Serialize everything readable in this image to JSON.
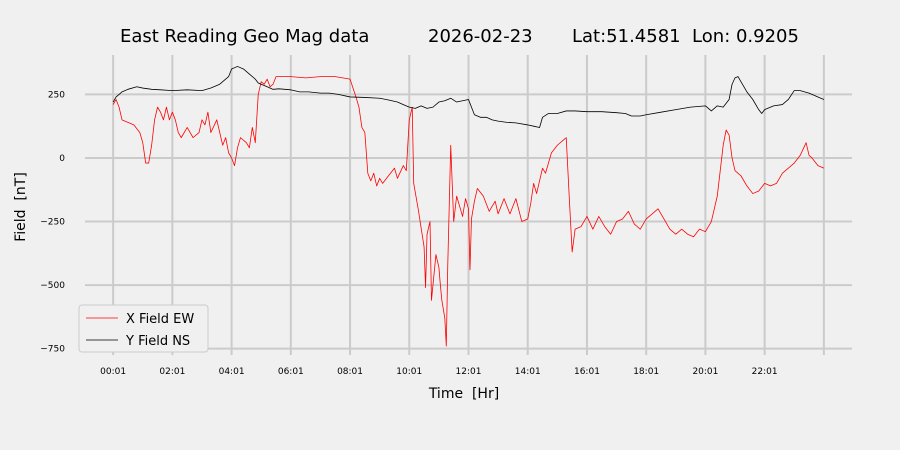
{
  "chart_data": {
    "type": "line",
    "title_parts": [
      "East Reading Geo Mag data",
      "2026-02-23",
      "Lat:51.4581  Lon: 0.9205"
    ],
    "xlabel": "Time  [Hr]",
    "ylabel": "Field  [nT]",
    "x_unit": "hours",
    "xlim": [
      -0.95,
      24.95
    ],
    "ylim": [
      -775,
      405
    ],
    "x_ticks": [
      {
        "x": 0,
        "label": "00:01"
      },
      {
        "x": 2,
        "label": "02:01"
      },
      {
        "x": 4,
        "label": "04:01"
      },
      {
        "x": 6,
        "label": "06:01"
      },
      {
        "x": 8,
        "label": "08:01"
      },
      {
        "x": 10,
        "label": "10:01"
      },
      {
        "x": 12,
        "label": "12:01"
      },
      {
        "x": 14,
        "label": "14:01"
      },
      {
        "x": 16,
        "label": "16:01"
      },
      {
        "x": 18,
        "label": "18:01"
      },
      {
        "x": 20,
        "label": "20:01"
      },
      {
        "x": 22,
        "label": "22:01"
      },
      {
        "x": 24,
        "label": ""
      }
    ],
    "y_ticks": [
      250,
      0,
      -250,
      -500,
      -750
    ],
    "grid": true,
    "legend_position": "lower-left",
    "series": [
      {
        "name": "X Field EW",
        "color": "#ff0000",
        "points": [
          [
            0,
            210
          ],
          [
            0.1,
            230
          ],
          [
            0.2,
            200
          ],
          [
            0.3,
            150
          ],
          [
            0.5,
            140
          ],
          [
            0.7,
            130
          ],
          [
            0.9,
            100
          ],
          [
            1.0,
            60
          ],
          [
            1.1,
            -20
          ],
          [
            1.2,
            -20
          ],
          [
            1.3,
            50
          ],
          [
            1.4,
            150
          ],
          [
            1.5,
            200
          ],
          [
            1.6,
            180
          ],
          [
            1.7,
            150
          ],
          [
            1.8,
            200
          ],
          [
            1.9,
            150
          ],
          [
            2.0,
            180
          ],
          [
            2.1,
            150
          ],
          [
            2.2,
            100
          ],
          [
            2.3,
            80
          ],
          [
            2.5,
            120
          ],
          [
            2.7,
            80
          ],
          [
            2.9,
            100
          ],
          [
            3.0,
            150
          ],
          [
            3.1,
            130
          ],
          [
            3.2,
            180
          ],
          [
            3.3,
            100
          ],
          [
            3.5,
            150
          ],
          [
            3.7,
            50
          ],
          [
            3.8,
            80
          ],
          [
            3.9,
            20
          ],
          [
            4.0,
            0
          ],
          [
            4.1,
            -30
          ],
          [
            4.2,
            40
          ],
          [
            4.3,
            80
          ],
          [
            4.5,
            60
          ],
          [
            4.6,
            40
          ],
          [
            4.7,
            120
          ],
          [
            4.8,
            60
          ],
          [
            4.9,
            250
          ],
          [
            5.0,
            300
          ],
          [
            5.1,
            290
          ],
          [
            5.2,
            310
          ],
          [
            5.3,
            280
          ],
          [
            5.4,
            290
          ],
          [
            5.5,
            320
          ],
          [
            6.0,
            320
          ],
          [
            6.5,
            315
          ],
          [
            7.0,
            320
          ],
          [
            7.5,
            320
          ],
          [
            8.0,
            310
          ],
          [
            8.2,
            240
          ],
          [
            8.3,
            200
          ],
          [
            8.4,
            120
          ],
          [
            8.5,
            100
          ],
          [
            8.6,
            -60
          ],
          [
            8.7,
            -90
          ],
          [
            8.8,
            -60
          ],
          [
            8.9,
            -110
          ],
          [
            9.0,
            -80
          ],
          [
            9.1,
            -100
          ],
          [
            9.3,
            -70
          ],
          [
            9.5,
            -40
          ],
          [
            9.6,
            -80
          ],
          [
            9.8,
            -30
          ],
          [
            9.9,
            -50
          ],
          [
            10.0,
            150
          ],
          [
            10.1,
            200
          ],
          [
            10.15,
            -100
          ],
          [
            10.3,
            -200
          ],
          [
            10.5,
            -350
          ],
          [
            10.55,
            -510
          ],
          [
            10.6,
            -300
          ],
          [
            10.7,
            -250
          ],
          [
            10.75,
            -560
          ],
          [
            10.8,
            -500
          ],
          [
            10.9,
            -380
          ],
          [
            11.0,
            -430
          ],
          [
            11.05,
            -500
          ],
          [
            11.1,
            -560
          ],
          [
            11.2,
            -630
          ],
          [
            11.25,
            -740
          ],
          [
            11.3,
            -420
          ],
          [
            11.4,
            50
          ],
          [
            11.5,
            -250
          ],
          [
            11.6,
            -150
          ],
          [
            11.8,
            -230
          ],
          [
            11.9,
            -160
          ],
          [
            12.0,
            -200
          ],
          [
            12.05,
            -440
          ],
          [
            12.1,
            -240
          ],
          [
            12.2,
            -170
          ],
          [
            12.3,
            -120
          ],
          [
            12.5,
            -150
          ],
          [
            12.7,
            -210
          ],
          [
            12.9,
            -170
          ],
          [
            13.0,
            -220
          ],
          [
            13.2,
            -160
          ],
          [
            13.4,
            -220
          ],
          [
            13.6,
            -160
          ],
          [
            13.8,
            -250
          ],
          [
            14.0,
            -240
          ],
          [
            14.1,
            -180
          ],
          [
            14.2,
            -100
          ],
          [
            14.3,
            -140
          ],
          [
            14.5,
            -40
          ],
          [
            14.6,
            -60
          ],
          [
            14.8,
            20
          ],
          [
            15.0,
            50
          ],
          [
            15.2,
            70
          ],
          [
            15.3,
            80
          ],
          [
            15.4,
            -150
          ],
          [
            15.5,
            -370
          ],
          [
            15.6,
            -280
          ],
          [
            15.8,
            -270
          ],
          [
            16.0,
            -230
          ],
          [
            16.2,
            -280
          ],
          [
            16.4,
            -230
          ],
          [
            16.6,
            -270
          ],
          [
            16.8,
            -300
          ],
          [
            17.0,
            -250
          ],
          [
            17.2,
            -240
          ],
          [
            17.4,
            -210
          ],
          [
            17.6,
            -260
          ],
          [
            17.8,
            -280
          ],
          [
            18.0,
            -240
          ],
          [
            18.2,
            -220
          ],
          [
            18.4,
            -200
          ],
          [
            18.6,
            -240
          ],
          [
            18.8,
            -280
          ],
          [
            19.0,
            -300
          ],
          [
            19.2,
            -280
          ],
          [
            19.4,
            -300
          ],
          [
            19.6,
            -310
          ],
          [
            19.8,
            -280
          ],
          [
            20.0,
            -290
          ],
          [
            20.2,
            -250
          ],
          [
            20.4,
            -150
          ],
          [
            20.5,
            -50
          ],
          [
            20.6,
            50
          ],
          [
            20.7,
            110
          ],
          [
            20.8,
            90
          ],
          [
            20.9,
            0
          ],
          [
            21.0,
            -50
          ],
          [
            21.2,
            -70
          ],
          [
            21.4,
            -110
          ],
          [
            21.6,
            -140
          ],
          [
            21.8,
            -130
          ],
          [
            22.0,
            -100
          ],
          [
            22.2,
            -110
          ],
          [
            22.4,
            -100
          ],
          [
            22.6,
            -60
          ],
          [
            22.8,
            -40
          ],
          [
            23.0,
            -20
          ],
          [
            23.2,
            10
          ],
          [
            23.4,
            60
          ],
          [
            23.5,
            10
          ],
          [
            23.6,
            0
          ],
          [
            23.8,
            -30
          ],
          [
            24.0,
            -40
          ]
        ]
      },
      {
        "name": "Y Field NS",
        "color": "#000000",
        "points": [
          [
            0,
            220
          ],
          [
            0.1,
            240
          ],
          [
            0.2,
            250
          ],
          [
            0.3,
            260
          ],
          [
            0.5,
            270
          ],
          [
            0.8,
            280
          ],
          [
            1.0,
            275
          ],
          [
            1.3,
            270
          ],
          [
            1.6,
            268
          ],
          [
            2.0,
            265
          ],
          [
            2.5,
            268
          ],
          [
            3.0,
            265
          ],
          [
            3.3,
            275
          ],
          [
            3.6,
            290
          ],
          [
            3.9,
            320
          ],
          [
            4.0,
            350
          ],
          [
            4.2,
            360
          ],
          [
            4.4,
            350
          ],
          [
            4.6,
            330
          ],
          [
            4.8,
            310
          ],
          [
            4.9,
            295
          ],
          [
            5.0,
            290
          ],
          [
            5.2,
            280
          ],
          [
            5.4,
            270
          ],
          [
            5.6,
            272
          ],
          [
            6.0,
            268
          ],
          [
            6.3,
            260
          ],
          [
            6.6,
            260
          ],
          [
            7.0,
            255
          ],
          [
            7.3,
            255
          ],
          [
            7.6,
            250
          ],
          [
            8.0,
            240
          ],
          [
            8.5,
            238
          ],
          [
            9.0,
            235
          ],
          [
            9.3,
            228
          ],
          [
            9.6,
            220
          ],
          [
            9.8,
            210
          ],
          [
            10.0,
            200
          ],
          [
            10.2,
            195
          ],
          [
            10.4,
            205
          ],
          [
            10.6,
            195
          ],
          [
            10.8,
            200
          ],
          [
            11.0,
            220
          ],
          [
            11.2,
            225
          ],
          [
            11.4,
            235
          ],
          [
            11.6,
            220
          ],
          [
            11.8,
            225
          ],
          [
            12.0,
            230
          ],
          [
            12.1,
            200
          ],
          [
            12.2,
            170
          ],
          [
            12.4,
            160
          ],
          [
            12.6,
            160
          ],
          [
            12.8,
            150
          ],
          [
            13.0,
            145
          ],
          [
            13.3,
            140
          ],
          [
            13.6,
            138
          ],
          [
            14.0,
            130
          ],
          [
            14.2,
            125
          ],
          [
            14.4,
            120
          ],
          [
            14.5,
            160
          ],
          [
            14.7,
            175
          ],
          [
            15.0,
            175
          ],
          [
            15.3,
            185
          ],
          [
            15.6,
            185
          ],
          [
            16.0,
            182
          ],
          [
            16.5,
            182
          ],
          [
            17.0,
            178
          ],
          [
            17.3,
            175
          ],
          [
            17.5,
            165
          ],
          [
            17.8,
            165
          ],
          [
            18.0,
            170
          ],
          [
            18.5,
            180
          ],
          [
            19.0,
            190
          ],
          [
            19.5,
            200
          ],
          [
            20.0,
            205
          ],
          [
            20.2,
            185
          ],
          [
            20.4,
            205
          ],
          [
            20.6,
            200
          ],
          [
            20.8,
            230
          ],
          [
            20.9,
            290
          ],
          [
            21.0,
            315
          ],
          [
            21.1,
            320
          ],
          [
            21.2,
            300
          ],
          [
            21.4,
            260
          ],
          [
            21.6,
            230
          ],
          [
            21.8,
            190
          ],
          [
            21.9,
            175
          ],
          [
            22.0,
            190
          ],
          [
            22.3,
            205
          ],
          [
            22.6,
            210
          ],
          [
            22.8,
            230
          ],
          [
            23.0,
            265
          ],
          [
            23.2,
            265
          ],
          [
            23.5,
            255
          ],
          [
            23.8,
            240
          ],
          [
            24.0,
            230
          ]
        ]
      }
    ]
  }
}
